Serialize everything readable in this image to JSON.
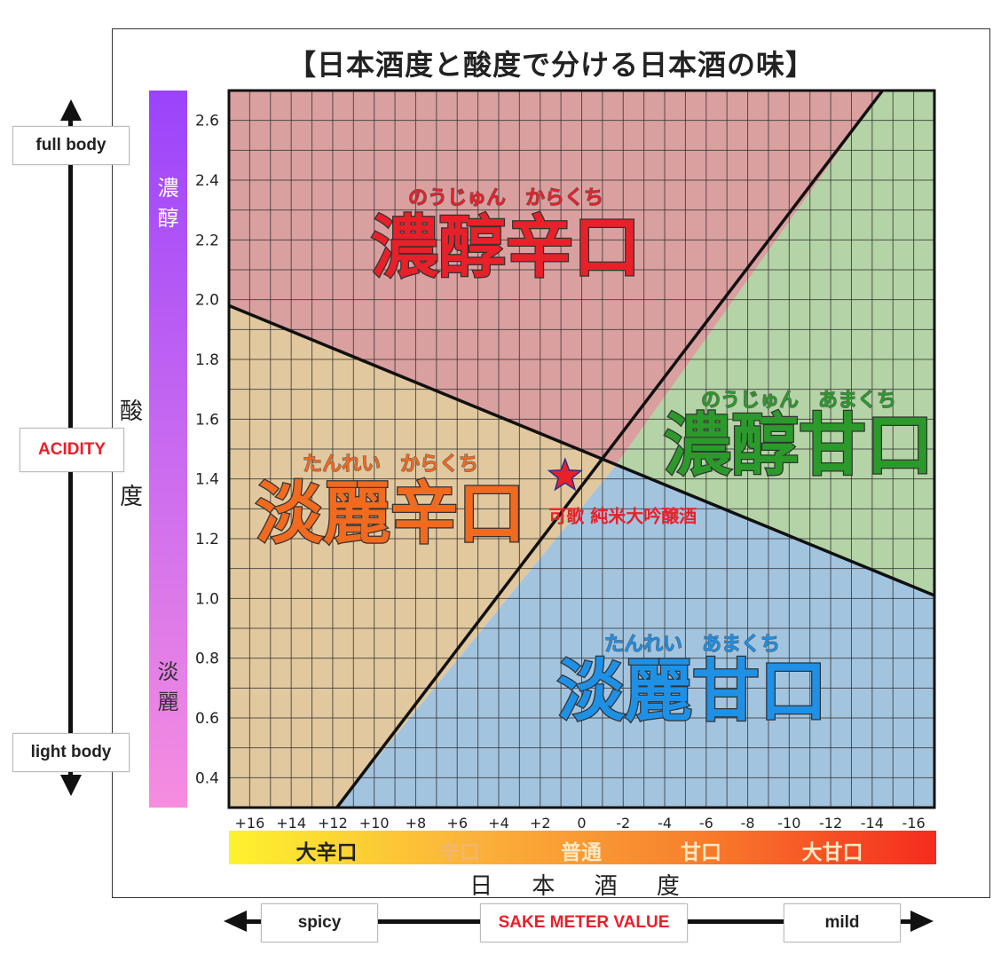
{
  "chart_data": {
    "type": "scatter",
    "title": "【日本酒度と酸度で分ける日本酒の味】",
    "xlabel": "日 本 酒 度",
    "ylabel": "酸度",
    "x_tick_labels": [
      "+16",
      "+14",
      "+12",
      "+10",
      "+8",
      "+6",
      "+4",
      "+2",
      "0",
      "-2",
      "-4",
      "-6",
      "-8",
      "-10",
      "-12",
      "-14",
      "-16"
    ],
    "x_tick_values": [
      16,
      14,
      12,
      10,
      8,
      6,
      4,
      2,
      0,
      -2,
      -4,
      -6,
      -8,
      -10,
      -12,
      -14,
      -16
    ],
    "y_tick_labels": [
      "0.4",
      "0.6",
      "0.8",
      "1.0",
      "1.2",
      "1.4",
      "1.6",
      "1.8",
      "2.0",
      "2.2",
      "2.4",
      "2.6"
    ],
    "y_tick_values": [
      0.4,
      0.6,
      0.8,
      1.0,
      1.2,
      1.4,
      1.6,
      1.8,
      2.0,
      2.2,
      2.4,
      2.6
    ],
    "xlim": [
      17,
      -17
    ],
    "ylim": [
      0.3,
      2.7
    ],
    "grid": true,
    "regions": [
      {
        "label": "濃醇辛口",
        "reading": "のうじゅん　からくち",
        "fill": "#d9a09f",
        "text_color": "#e8202a",
        "polygon": [
          [
            17,
            1.98
          ],
          [
            17,
            2.7
          ],
          [
            -14.5,
            2.7
          ],
          [
            -1.7,
            1.45
          ]
        ]
      },
      {
        "label": "濃醇甘口",
        "reading": "のうじゅん　あまくち",
        "fill": "#b4d3a6",
        "text_color": "#2b9a2b",
        "polygon": [
          [
            -14.5,
            2.7
          ],
          [
            -17,
            2.7
          ],
          [
            -17,
            1.01
          ],
          [
            -1.7,
            1.45
          ]
        ]
      },
      {
        "label": "淡麗辛口",
        "reading": "たんれい　からくち",
        "fill": "#e1c89f",
        "text_color": "#f06a1f",
        "polygon": [
          [
            17,
            0.3
          ],
          [
            17,
            1.98
          ],
          [
            -1.7,
            1.45
          ],
          [
            11.8,
            0.3
          ]
        ]
      },
      {
        "label": "淡麗甘口",
        "reading": "たんれい　あまくち",
        "fill": "#a3c4df",
        "text_color": "#1e90e6",
        "polygon": [
          [
            11.8,
            0.3
          ],
          [
            -1.7,
            1.45
          ],
          [
            -17,
            1.01
          ],
          [
            -17,
            0.3
          ]
        ]
      }
    ],
    "boundary_lines": [
      {
        "from": [
          17,
          1.98
        ],
        "to": [
          -17,
          1.01
        ]
      },
      {
        "from": [
          11.8,
          0.3
        ],
        "to": [
          -14.5,
          2.7
        ]
      }
    ],
    "points": [
      {
        "name": "可歌 純米大吟醸酒",
        "x": 0.8,
        "y": 1.41,
        "marker": "star",
        "color": "#e8202a"
      }
    ],
    "taste_scale": [
      {
        "label": "大辛口",
        "color": "#222222"
      },
      {
        "label": "辛口",
        "color": "#f3b66f"
      },
      {
        "label": "普通",
        "color": "#fde9c5"
      },
      {
        "label": "甘口",
        "color": "#fde9c5"
      },
      {
        "label": "大甘口",
        "color": "#fde9c5"
      }
    ],
    "body_scale": {
      "top": "濃醇",
      "bottom": "淡麗"
    }
  },
  "annotations": {
    "full_body": "full body",
    "light_body": "light body",
    "acidity": "ACIDITY",
    "spicy": "spicy",
    "sake_meter": "SAKE METER VALUE",
    "mild": "mild"
  },
  "colors": {
    "accent_red": "#e8202a",
    "axis_black": "#111111"
  }
}
